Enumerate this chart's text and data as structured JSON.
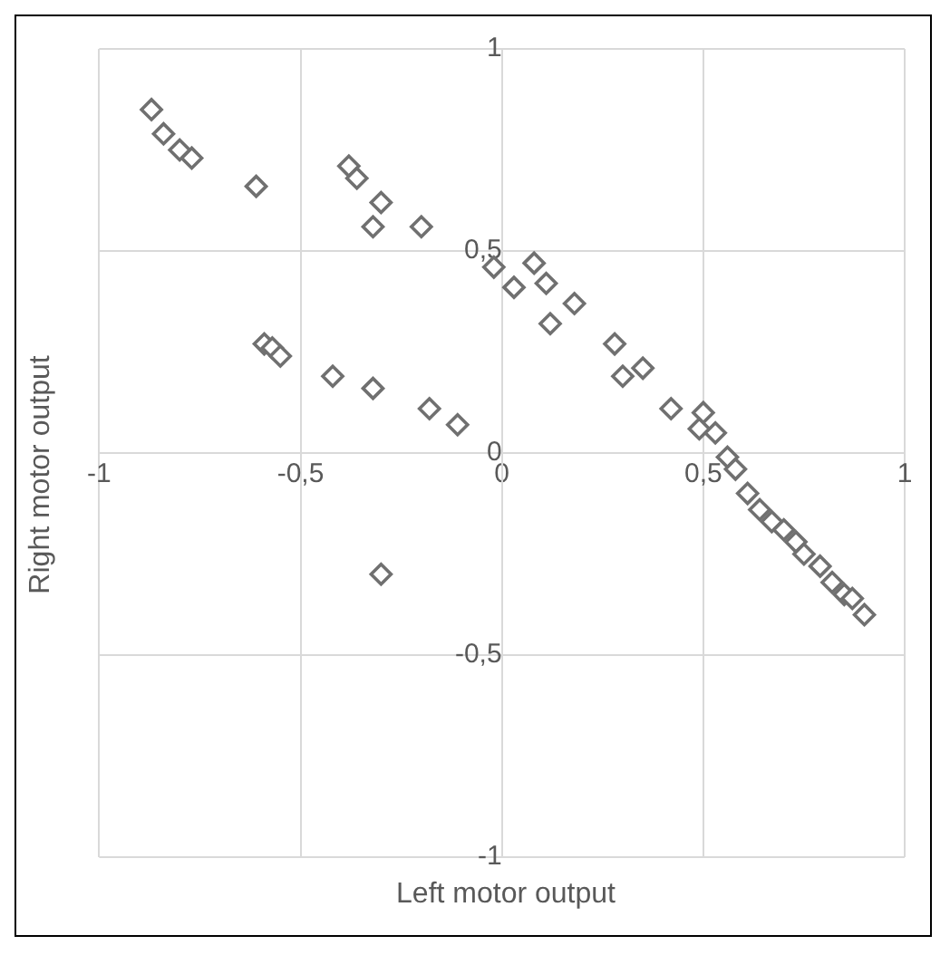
{
  "chart_data": {
    "type": "scatter",
    "xlabel": "Left motor output",
    "ylabel": "Right motor output",
    "x": [
      -0.87,
      -0.84,
      -0.8,
      -0.77,
      -0.61,
      -0.38,
      -0.36,
      -0.3,
      -0.32,
      -0.2,
      -0.02,
      0.03,
      -0.59,
      -0.57,
      -0.55,
      -0.42,
      -0.32,
      -0.18,
      -0.11,
      -0.3,
      0.08,
      0.11,
      0.12,
      0.18,
      0.28,
      0.3,
      0.35,
      0.42,
      0.5,
      0.49,
      0.53,
      0.56,
      0.58,
      0.61,
      0.64,
      0.67,
      0.7,
      0.73,
      0.75,
      0.79,
      0.82,
      0.85,
      0.87,
      0.9
    ],
    "series": [
      {
        "color": "#707070",
        "values": [
          0.85,
          0.79,
          0.75,
          0.73,
          0.66,
          0.71,
          0.68,
          0.62,
          0.56,
          0.56,
          0.46,
          0.41,
          0.27,
          0.26,
          0.24,
          0.19,
          0.16,
          0.11,
          0.07,
          -0.3,
          0.47,
          0.42,
          0.32,
          0.37,
          0.27,
          0.19,
          0.21,
          0.11,
          0.1,
          0.06,
          0.05,
          -0.01,
          -0.04,
          -0.1,
          -0.14,
          -0.17,
          -0.19,
          -0.22,
          -0.25,
          -0.28,
          -0.32,
          -0.35,
          -0.36,
          -0.4
        ]
      }
    ],
    "xlim": [
      -1,
      1
    ],
    "ylim": [
      -1,
      1
    ],
    "xticks": [
      {
        "value": -1,
        "label": "-1"
      },
      {
        "value": -0.5,
        "label": "-0,5"
      },
      0,
      {
        "value": 0.5,
        "label": "0,5"
      },
      1
    ],
    "yticks": [
      {
        "value": -1,
        "label": "-1"
      },
      {
        "value": -0.5,
        "label": "-0,5"
      },
      0,
      {
        "value": 0.5,
        "label": "0,5"
      },
      1
    ],
    "grid": true,
    "marker": "diamond",
    "legend": false
  }
}
